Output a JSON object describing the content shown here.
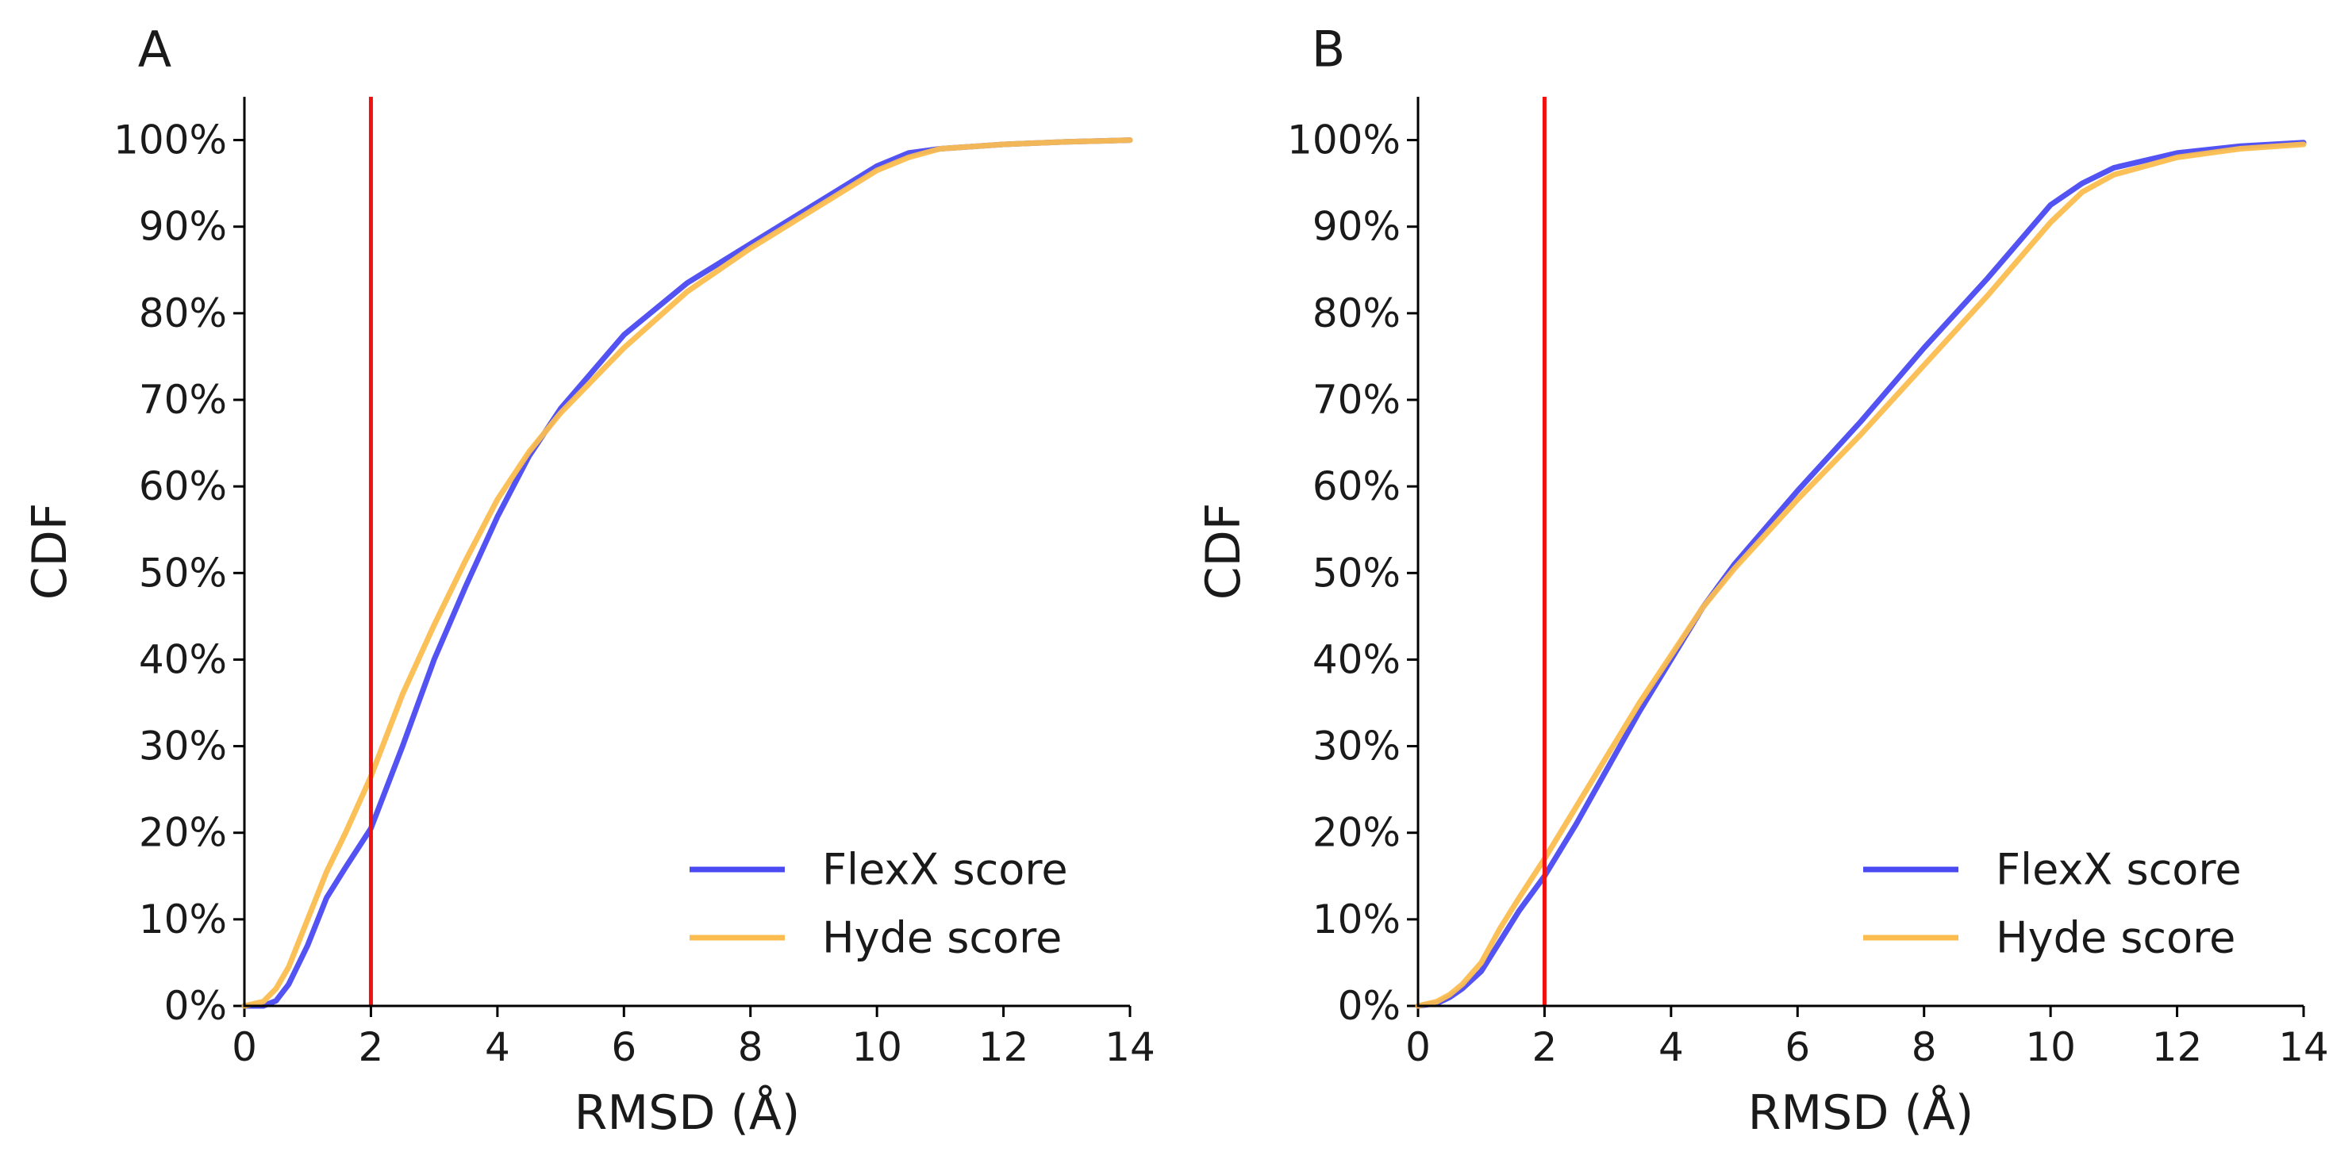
{
  "colors": {
    "flexx": "#4a4af2",
    "hyde": "#fbbd4f",
    "threshold": "#f01010",
    "axis": "#000000"
  },
  "chart_data": [
    {
      "type": "line",
      "panel_label": "A",
      "xlabel": "RMSD (Å)",
      "ylabel": "CDF",
      "xlim": [
        0,
        14
      ],
      "ylim": [
        0,
        105
      ],
      "xticks": [
        0,
        2,
        4,
        6,
        8,
        10,
        12,
        14
      ],
      "xtick_labels": [
        "0",
        "2",
        "4",
        "6",
        "8",
        "10",
        "12",
        "14"
      ],
      "yticks": [
        0,
        10,
        20,
        30,
        40,
        50,
        60,
        70,
        80,
        90,
        100
      ],
      "ytick_labels": [
        "0%",
        "10%",
        "20%",
        "30%",
        "40%",
        "50%",
        "60%",
        "70%",
        "80%",
        "90%",
        "100%"
      ],
      "threshold_x": 2,
      "legend_position": "lower-right",
      "series": [
        {
          "name": "FlexX score",
          "color_key": "flexx",
          "x": [
            0,
            0.3,
            0.5,
            0.7,
            1.0,
            1.3,
            1.6,
            2.0,
            2.5,
            3.0,
            3.5,
            4.0,
            4.5,
            5.0,
            6.0,
            7.0,
            8.0,
            9.0,
            10.0,
            10.5,
            11.0,
            12.0,
            13.0,
            14.0
          ],
          "y": [
            0,
            0,
            0.6,
            2.5,
            7,
            12.5,
            16,
            20.5,
            30,
            40,
            48.5,
            56.5,
            63.5,
            69,
            77.5,
            83.5,
            88,
            92.5,
            97,
            98.5,
            99,
            99.5,
            99.8,
            100
          ]
        },
        {
          "name": "Hyde score",
          "color_key": "hyde",
          "x": [
            0,
            0.3,
            0.5,
            0.7,
            1.0,
            1.3,
            1.6,
            2.0,
            2.5,
            3.0,
            3.5,
            4.0,
            4.5,
            5.0,
            6.0,
            7.0,
            8.0,
            9.0,
            10.0,
            10.5,
            11.0,
            12.0,
            13.0,
            14.0
          ],
          "y": [
            0,
            0.5,
            2,
            4.5,
            10,
            15.5,
            20,
            26.5,
            36,
            44,
            51.5,
            58.5,
            64,
            68.5,
            76,
            82.5,
            87.5,
            92,
            96.5,
            98,
            99,
            99.5,
            99.8,
            100
          ]
        }
      ]
    },
    {
      "type": "line",
      "panel_label": "B",
      "xlabel": "RMSD (Å)",
      "ylabel": "CDF",
      "xlim": [
        0,
        14
      ],
      "ylim": [
        0,
        105
      ],
      "xticks": [
        0,
        2,
        4,
        6,
        8,
        10,
        12,
        14
      ],
      "xtick_labels": [
        "0",
        "2",
        "4",
        "6",
        "8",
        "10",
        "12",
        "14"
      ],
      "yticks": [
        0,
        10,
        20,
        30,
        40,
        50,
        60,
        70,
        80,
        90,
        100
      ],
      "ytick_labels": [
        "0%",
        "10%",
        "20%",
        "30%",
        "40%",
        "50%",
        "60%",
        "70%",
        "80%",
        "90%",
        "100%"
      ],
      "threshold_x": 2,
      "legend_position": "lower-right",
      "series": [
        {
          "name": "FlexX score",
          "color_key": "flexx",
          "x": [
            0,
            0.3,
            0.5,
            0.7,
            1.0,
            1.3,
            1.6,
            2.0,
            2.5,
            3.0,
            3.5,
            4.0,
            4.5,
            5.0,
            6.0,
            7.0,
            8.0,
            9.0,
            10.0,
            10.5,
            11.0,
            12.0,
            13.0,
            14.0
          ],
          "y": [
            0,
            0.3,
            1,
            2,
            4,
            7.5,
            11,
            15,
            21,
            27.5,
            34,
            40,
            46,
            51,
            59.5,
            67.5,
            76,
            84,
            92.5,
            95,
            96.8,
            98.5,
            99.3,
            99.7
          ]
        },
        {
          "name": "Hyde score",
          "color_key": "hyde",
          "x": [
            0,
            0.3,
            0.5,
            0.7,
            1.0,
            1.3,
            1.6,
            2.0,
            2.5,
            3.0,
            3.5,
            4.0,
            4.5,
            5.0,
            6.0,
            7.0,
            8.0,
            9.0,
            10.0,
            10.5,
            11.0,
            12.0,
            13.0,
            14.0
          ],
          "y": [
            0,
            0.5,
            1.3,
            2.5,
            5,
            9,
            12.5,
            17,
            23,
            29,
            35,
            40.5,
            46,
            50.5,
            58.5,
            66,
            74,
            82,
            90.5,
            94,
            96,
            98,
            99,
            99.5
          ]
        }
      ]
    }
  ]
}
